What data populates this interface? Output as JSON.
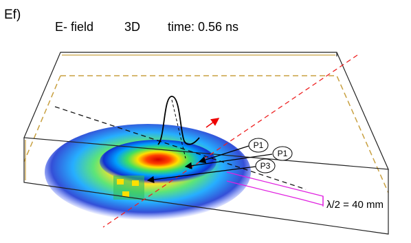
{
  "figure": {
    "panel_label": "Ef)",
    "title_parts": [
      "E- field",
      "3D",
      "time: 0.56 ns"
    ],
    "probes": [
      "P1",
      "P1",
      "P3"
    ],
    "dimension_label": "λ/2 = 40 mm"
  }
}
